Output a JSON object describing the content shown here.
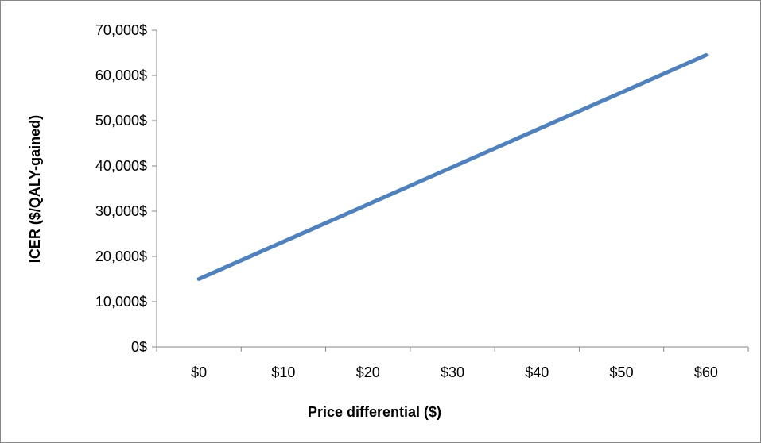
{
  "chart_data": {
    "type": "line",
    "title": "",
    "xlabel": "Price differential ($)",
    "ylabel": "ICER ($/QALY-gained)",
    "categories": [
      "$0",
      "$10",
      "$20",
      "$30",
      "$40",
      "$50",
      "$60"
    ],
    "x": [
      0,
      10,
      20,
      30,
      40,
      50,
      60
    ],
    "y_tick_labels": [
      "0$",
      "10,000$",
      "20,000$",
      "30,000$",
      "40,000$",
      "50,000$",
      "60,000$",
      "70,000$"
    ],
    "y_ticks": [
      0,
      10000,
      20000,
      30000,
      40000,
      50000,
      60000,
      70000
    ],
    "ylim": [
      0,
      70000
    ],
    "grid": false,
    "legend": "none",
    "series": [
      {
        "color": "#4F81BD",
        "x": [
          0,
          60
        ],
        "values": [
          15000,
          64500
        ]
      }
    ]
  }
}
